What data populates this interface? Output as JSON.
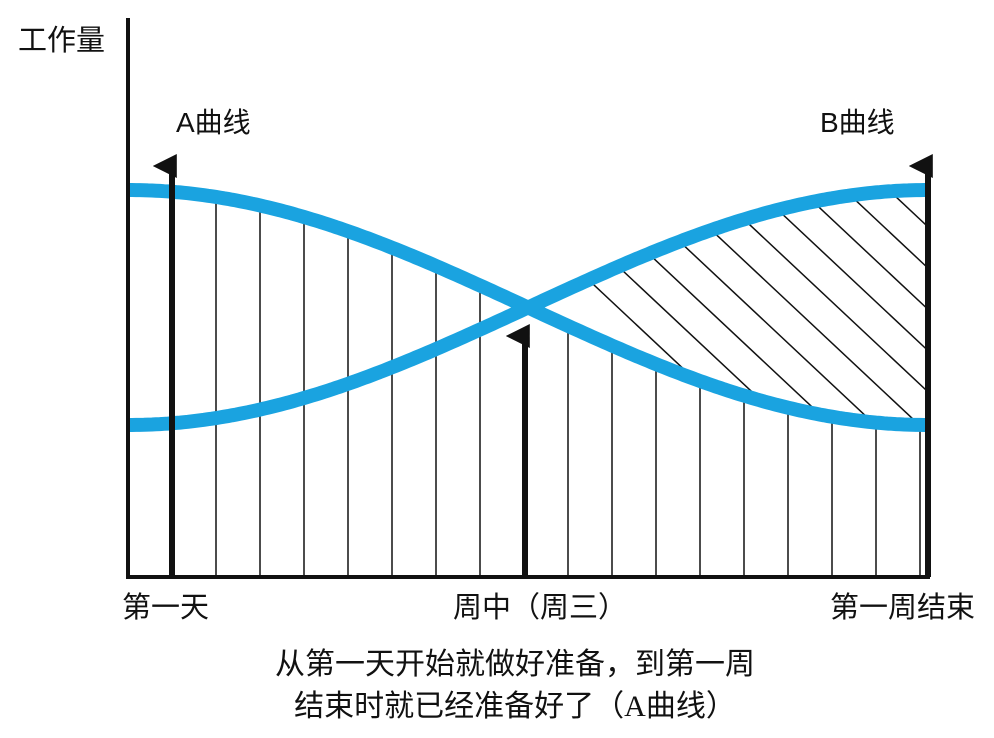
{
  "axis": {
    "y_label": "工作量"
  },
  "curves": [
    {
      "label": "A曲线"
    },
    {
      "label": "B曲线"
    }
  ],
  "x_labels": [
    "第一天",
    "周中（周三）",
    "第一周结束"
  ],
  "caption": [
    "从第一天开始就做好准备，到第一周",
    "结束时就已经准备好了（A曲线）"
  ]
}
